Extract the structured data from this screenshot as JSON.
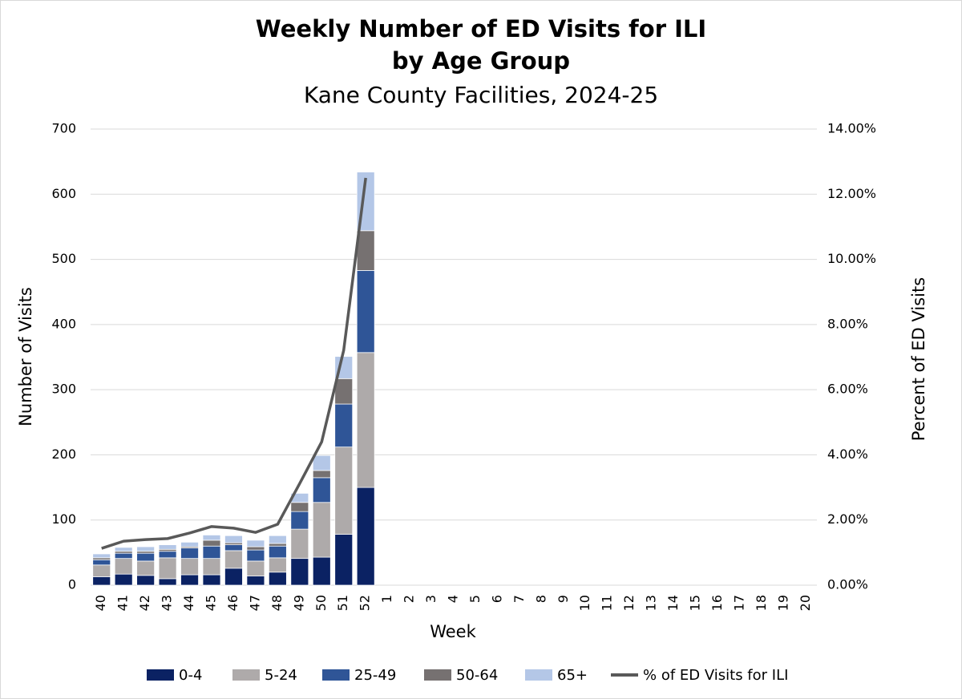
{
  "chart_data": {
    "type": "bar",
    "stacked": true,
    "title": [
      "Weekly Number of ED Visits for ILI",
      "by Age Group"
    ],
    "subtitle": "Kane County Facilities, 2024-25",
    "x_label": "Week",
    "y_label": "Number of Visits",
    "y2_label": "Percent of ED Visits",
    "categories": [
      "40",
      "41",
      "42",
      "43",
      "44",
      "45",
      "46",
      "47",
      "48",
      "49",
      "50",
      "51",
      "52",
      "1",
      "2",
      "3",
      "4",
      "5",
      "6",
      "7",
      "8",
      "9",
      "10",
      "11",
      "12",
      "13",
      "14",
      "15",
      "16",
      "17",
      "18",
      "19",
      "20"
    ],
    "ylim": [
      0,
      700
    ],
    "yticks": [
      0,
      100,
      200,
      300,
      400,
      500,
      600,
      700
    ],
    "y2lim": [
      0,
      14
    ],
    "y2ticks": [
      {
        "value": 0,
        "label": "0.00%"
      },
      {
        "value": 2,
        "label": "2.00%"
      },
      {
        "value": 4,
        "label": "4.00%"
      },
      {
        "value": 6,
        "label": "6.00%"
      },
      {
        "value": 8,
        "label": "8.00%"
      },
      {
        "value": 10,
        "label": "10.00%"
      },
      {
        "value": 12,
        "label": "12.00%"
      },
      {
        "value": 14,
        "label": "14.00%"
      }
    ],
    "grid": true,
    "legend": "bottom",
    "series": [
      {
        "name": "0-4",
        "color": "#0b2263",
        "values": [
          13,
          17,
          15,
          10,
          16,
          16,
          26,
          14,
          20,
          41,
          43,
          78,
          150,
          null,
          null,
          null,
          null,
          null,
          null,
          null,
          null,
          null,
          null,
          null,
          null,
          null,
          null,
          null,
          null,
          null,
          null,
          null,
          null
        ]
      },
      {
        "name": "5-24",
        "color": "#aeaaaa",
        "values": [
          18,
          24,
          22,
          32,
          25,
          25,
          27,
          23,
          22,
          45,
          84,
          134,
          207,
          null,
          null,
          null,
          null,
          null,
          null,
          null,
          null,
          null,
          null,
          null,
          null,
          null,
          null,
          null,
          null,
          null,
          null,
          null,
          null
        ]
      },
      {
        "name": "25-49",
        "color": "#2f5597",
        "values": [
          8,
          8,
          12,
          10,
          16,
          19,
          9,
          17,
          18,
          27,
          38,
          66,
          126,
          null,
          null,
          null,
          null,
          null,
          null,
          null,
          null,
          null,
          null,
          null,
          null,
          null,
          null,
          null,
          null,
          null,
          null,
          null,
          null
        ]
      },
      {
        "name": "50-64",
        "color": "#767171",
        "values": [
          3,
          3,
          3,
          3,
          2,
          9,
          3,
          5,
          4,
          14,
          11,
          39,
          61,
          null,
          null,
          null,
          null,
          null,
          null,
          null,
          null,
          null,
          null,
          null,
          null,
          null,
          null,
          null,
          null,
          null,
          null,
          null,
          null
        ]
      },
      {
        "name": "65+",
        "color": "#b4c7e7",
        "values": [
          6,
          6,
          7,
          7,
          7,
          8,
          11,
          10,
          12,
          14,
          23,
          34,
          90,
          null,
          null,
          null,
          null,
          null,
          null,
          null,
          null,
          null,
          null,
          null,
          null,
          null,
          null,
          null,
          null,
          null,
          null,
          null,
          null
        ]
      },
      {
        "name": "% of ED Visits for ILI",
        "type": "line",
        "axis": "y2",
        "color": "#595959",
        "values": [
          1.13,
          1.35,
          1.4,
          1.43,
          1.6,
          1.8,
          1.75,
          1.62,
          1.87,
          3.12,
          4.4,
          7.21,
          12.5,
          null,
          null,
          null,
          null,
          null,
          null,
          null,
          null,
          null,
          null,
          null,
          null,
          null,
          null,
          null,
          null,
          null,
          null,
          null,
          null
        ]
      }
    ]
  }
}
